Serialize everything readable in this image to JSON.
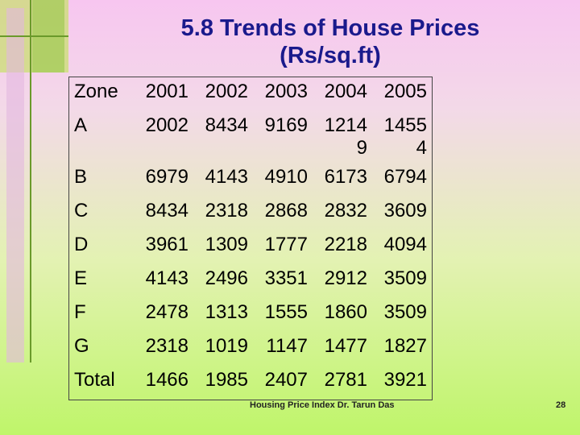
{
  "title": "5.8 Trends of House Prices",
  "subtitle": "(Rs/sq.ft)",
  "table": {
    "header": [
      "Zone",
      2001,
      2002,
      2003,
      2004,
      2005
    ],
    "rows": [
      [
        "A",
        2002,
        8434,
        9169,
        12149,
        14554
      ],
      [
        "B",
        6979,
        4143,
        4910,
        6173,
        6794
      ],
      [
        "C",
        8434,
        2318,
        2868,
        2832,
        3609
      ],
      [
        "D",
        3961,
        1309,
        1777,
        2218,
        4094
      ],
      [
        "E",
        4143,
        2496,
        3351,
        2912,
        3509
      ],
      [
        "F",
        2478,
        1313,
        1555,
        1860,
        3509
      ],
      [
        "G",
        2318,
        1019,
        1147,
        1477,
        1827
      ],
      [
        "Total",
        1466,
        1985,
        2407,
        2781,
        3921
      ]
    ]
  },
  "footer": "Housing Price Index Dr. Tarun Das",
  "page_number": "28"
}
